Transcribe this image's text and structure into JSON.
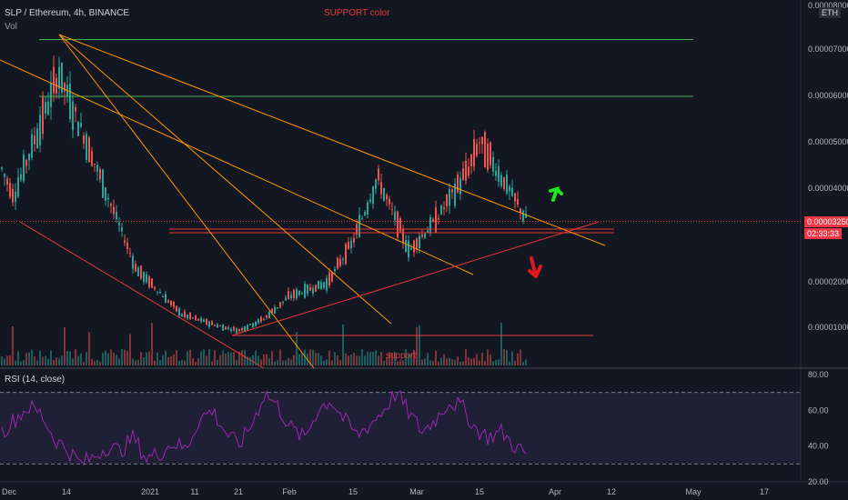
{
  "header": {
    "symbol_line": "SLP / Ethereum, 4h, BINANCE",
    "volume_label": "Vol",
    "annotation_support_color": "SUPPORT color",
    "currency_badge": "ETH"
  },
  "price_scale": {
    "ticks": [
      "0.00008000",
      "0.00007000",
      "0.00006000",
      "0.00005000",
      "0.00004000",
      "0.00002000",
      "0.00001000"
    ],
    "last_price": "0.00003250",
    "countdown": "02:33:33"
  },
  "rsi_pane": {
    "label": "RSI (14, close)",
    "ticks": [
      "80.00",
      "60.00",
      "40.00",
      "20.00"
    ]
  },
  "time_axis": {
    "labels": [
      "Dec",
      "14",
      "2021",
      "11",
      "21",
      "Feb",
      "15",
      "Mar",
      "15",
      "Apr",
      "12",
      "May",
      "17"
    ]
  },
  "annotations": {
    "support_text": "support"
  },
  "colors": {
    "background": "#131722",
    "up": "#26a69a",
    "down": "#ef5350",
    "support_line": "#e53935",
    "resistance_line": "#4caf50",
    "trend_line": "#ff9800",
    "rsi_line": "#9c27b0",
    "rsi_band": "#7e57c2",
    "arrow_up": "#22e620",
    "arrow_down": "#e0191f",
    "last_price_tag": "#f23645"
  },
  "chart_data": [
    {
      "type": "candlestick",
      "title": "SLP / Ethereum, 4h, BINANCE",
      "ylabel": "",
      "ylim": [
        0,
        8e-05
      ],
      "x": [
        "Dec",
        "14",
        "2021",
        "11",
        "21",
        "Feb",
        "15",
        "Mar",
        "15",
        "Apr",
        "12",
        "May",
        "17"
      ],
      "close_path": [
        [
          "Dec",
          4.5e-05
        ],
        [
          "Dec",
          3.8e-05
        ],
        [
          "14",
          6.5e-05
        ],
        [
          "14",
          5.5e-05
        ],
        [
          "2021",
          2.2e-05
        ],
        [
          "2021",
          1.2e-05
        ],
        [
          "11",
          9.5e-06
        ],
        [
          "21",
          8.5e-06
        ],
        [
          "21",
          1.1e-05
        ],
        [
          "Feb",
          1.6e-05
        ],
        [
          "Feb",
          1.9e-05
        ],
        [
          "15",
          2.8e-05
        ],
        [
          "15",
          4.2e-05
        ],
        [
          "Mar",
          2.6e-05
        ],
        [
          "Mar",
          3.3e-05
        ],
        [
          "15",
          4.4e-05
        ],
        [
          "15",
          5e-05
        ],
        [
          "15",
          4.1e-05
        ],
        [
          "Apr",
          3.25e-05
        ]
      ],
      "horizontal_levels": [
        7.25e-05,
        6e-05,
        3.2e-05,
        7.5e-06
      ],
      "last_price": 3.25e-05
    },
    {
      "type": "line",
      "title": "RSI (14, close)",
      "ylim": [
        20,
        80
      ],
      "bands": [
        30,
        70
      ],
      "values": [
        48,
        55,
        62,
        58,
        44,
        38,
        30,
        34,
        40,
        37,
        45,
        33,
        36,
        42,
        38,
        55,
        60,
        48,
        40,
        52,
        70,
        62,
        50,
        44,
        60,
        66,
        55,
        46,
        52,
        60,
        70,
        58,
        48,
        55,
        65,
        62,
        50,
        45,
        48,
        40,
        35
      ]
    }
  ]
}
